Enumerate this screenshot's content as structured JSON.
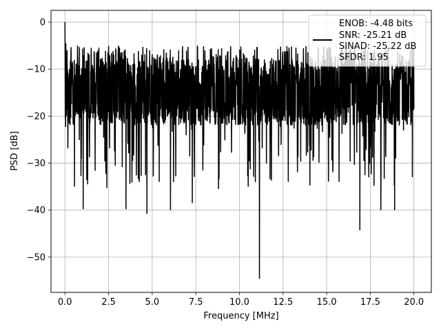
{
  "chart_data": {
    "type": "line",
    "title": "",
    "xlabel": "Frequency [MHz]",
    "ylabel": "PSD [dB]",
    "xlim": [
      -0.8,
      21.0
    ],
    "ylim": [
      -57.5,
      2.5
    ],
    "xticks": [
      0.0,
      2.5,
      5.0,
      7.5,
      10.0,
      12.5,
      15.0,
      17.5,
      20.0
    ],
    "xtick_labels": [
      "0.0",
      "2.5",
      "5.0",
      "7.5",
      "10.0",
      "12.5",
      "15.0",
      "17.5",
      "20.0"
    ],
    "yticks": [
      0,
      -10,
      -20,
      -30,
      -40,
      -50
    ],
    "ytick_labels": [
      "0",
      "−10",
      "−20",
      "−30",
      "−40",
      "−50"
    ],
    "grid": true,
    "legend_position": "top-right",
    "legend_entries": [
      "ENOB: -4.48 bits",
      "SNR: -25.21 dB",
      "SINAD: -25.22 dB",
      "SFDR: 1.95"
    ],
    "series": [
      {
        "color": "#000000",
        "x_range": [
          0.0,
          20.0
        ],
        "sample_count": 2048,
        "band_upper_db": -8,
        "band_lower_db": -22,
        "spike_max_db": -5,
        "dip_min_db": -35,
        "peaks": [
          {
            "x": 0.0,
            "y": 0.0
          },
          {
            "x": 0.05,
            "y": -4.5
          },
          {
            "x": 0.12,
            "y": -6.0
          }
        ],
        "notable_dips": [
          {
            "x": 0.55,
            "y": -35.0
          },
          {
            "x": 1.05,
            "y": -39.8
          },
          {
            "x": 1.3,
            "y": -34.5
          },
          {
            "x": 2.4,
            "y": -35.3
          },
          {
            "x": 3.5,
            "y": -39.8
          },
          {
            "x": 4.25,
            "y": -34.0
          },
          {
            "x": 4.7,
            "y": -40.8
          },
          {
            "x": 6.05,
            "y": -40.0
          },
          {
            "x": 7.3,
            "y": -38.5
          },
          {
            "x": 8.8,
            "y": -35.5
          },
          {
            "x": 10.5,
            "y": -35.0
          },
          {
            "x": 11.15,
            "y": -54.6
          },
          {
            "x": 12.8,
            "y": -34.0
          },
          {
            "x": 16.9,
            "y": -44.3
          },
          {
            "x": 18.1,
            "y": -40.0
          },
          {
            "x": 18.9,
            "y": -40.0
          }
        ]
      }
    ]
  }
}
